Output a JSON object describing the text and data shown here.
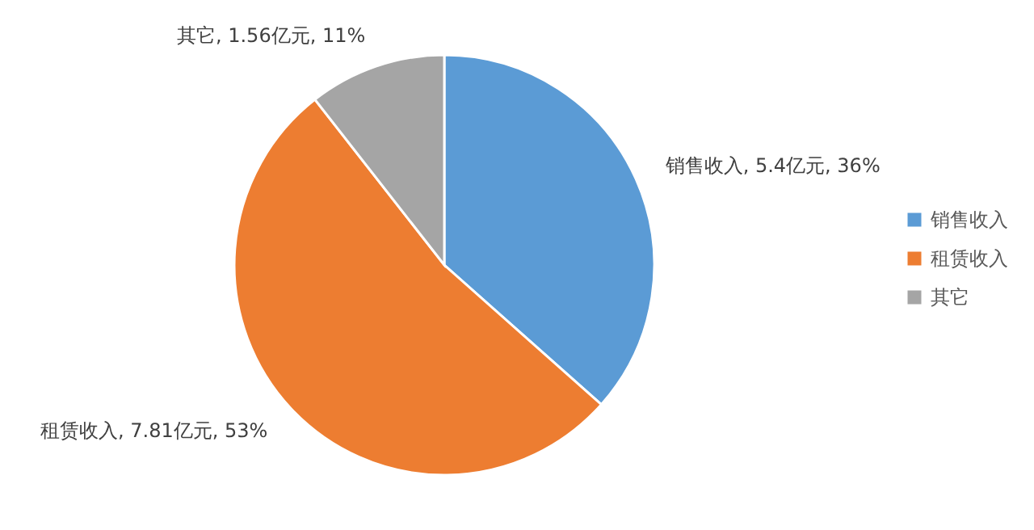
{
  "chart_data": {
    "type": "pie",
    "categories": [
      "销售收入",
      "租赁收入",
      "其它"
    ],
    "values": [
      5.4,
      7.81,
      1.56
    ],
    "colors": [
      "#5b9bd5",
      "#ed7d31",
      "#a5a5a5"
    ],
    "value_labels": [
      "销售收入, 5.4亿元, 36%",
      "租赁收入, 7.81亿元, 53%",
      "其它, 1.56亿元, 11%"
    ],
    "legend": "right"
  }
}
